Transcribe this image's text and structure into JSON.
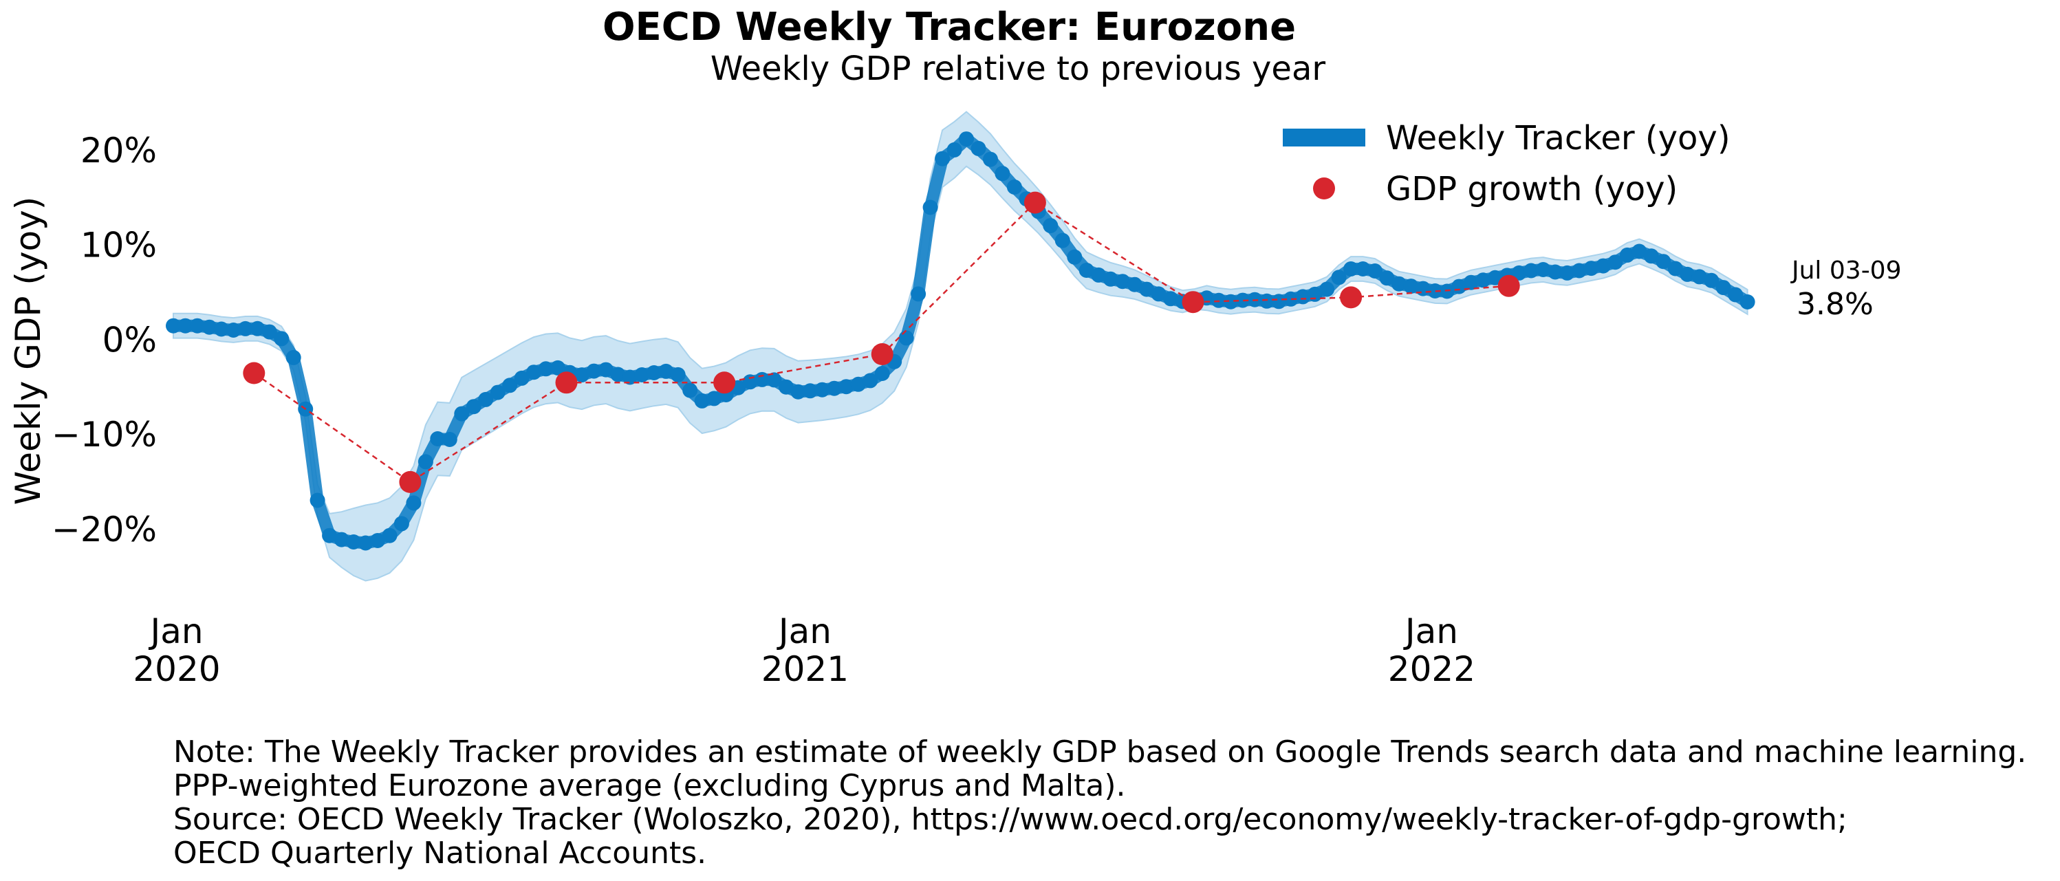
{
  "chart_data": {
    "type": "line",
    "title": "OECD Weekly Tracker: Eurozone",
    "subtitle": "Weekly GDP relative to previous year",
    "ylabel": "Weekly GDP (yoy)",
    "xlabel": "",
    "ylim": [
      -28,
      25
    ],
    "xlim": [
      "2019-12-30",
      "2022-07-21"
    ],
    "grid": false,
    "legend_position": "top-right",
    "y_ticks": [
      {
        "value": 20,
        "label": "20%"
      },
      {
        "value": 10,
        "label": "10%"
      },
      {
        "value": 0,
        "label": "0%"
      },
      {
        "value": -10,
        "label": "−10%"
      },
      {
        "value": -20,
        "label": "−20%"
      }
    ],
    "x_ticks": [
      {
        "date": "2020-01-01",
        "month": "Jan",
        "year": "2020"
      },
      {
        "date": "2021-01-01",
        "month": "Jan",
        "year": "2021"
      },
      {
        "date": "2022-01-01",
        "month": "Jan",
        "year": "2022"
      }
    ],
    "colors": {
      "tracker": "#0b7bc4",
      "band": "#a9d2ec",
      "gdp": "#d7262e"
    },
    "series": [
      {
        "name": "Weekly Tracker (yoy)",
        "style": "thick-line-with-dots",
        "points": [
          [
            "2019-12-30",
            1.5
          ],
          [
            "2020-01-15",
            1.5
          ],
          [
            "2020-02-01",
            1.0
          ],
          [
            "2020-02-15",
            1.3
          ],
          [
            "2020-02-29",
            0.6
          ],
          [
            "2020-03-07",
            -1.0
          ],
          [
            "2020-03-14",
            -4.0
          ],
          [
            "2020-03-21",
            -15.5
          ],
          [
            "2020-03-28",
            -20.5
          ],
          [
            "2020-04-04",
            -21.0
          ],
          [
            "2020-04-18",
            -21.5
          ],
          [
            "2020-05-02",
            -21.0
          ],
          [
            "2020-05-16",
            -18.5
          ],
          [
            "2020-05-23",
            -14.0
          ],
          [
            "2020-05-30",
            -10.0
          ],
          [
            "2020-06-06",
            -11.5
          ],
          [
            "2020-06-13",
            -8.0
          ],
          [
            "2020-06-27",
            -6.5
          ],
          [
            "2020-07-11",
            -5.0
          ],
          [
            "2020-07-25",
            -3.5
          ],
          [
            "2020-08-08",
            -2.8
          ],
          [
            "2020-08-22",
            -3.8
          ],
          [
            "2020-09-05",
            -3.0
          ],
          [
            "2020-09-19",
            -4.0
          ],
          [
            "2020-10-03",
            -3.5
          ],
          [
            "2020-10-17",
            -3.2
          ],
          [
            "2020-10-31",
            -6.5
          ],
          [
            "2020-11-14",
            -6.0
          ],
          [
            "2020-11-28",
            -4.5
          ],
          [
            "2020-12-12",
            -4.0
          ],
          [
            "2020-12-26",
            -5.5
          ],
          [
            "2021-01-09",
            -5.3
          ],
          [
            "2021-01-23",
            -5.0
          ],
          [
            "2021-02-06",
            -4.5
          ],
          [
            "2021-02-20",
            -3.0
          ],
          [
            "2021-03-06",
            2.0
          ],
          [
            "2021-03-13",
            12.0
          ],
          [
            "2021-03-20",
            19.0
          ],
          [
            "2021-03-27",
            19.5
          ],
          [
            "2021-04-03",
            21.5
          ],
          [
            "2021-04-17",
            19.5
          ],
          [
            "2021-05-01",
            16.5
          ],
          [
            "2021-05-15",
            14.0
          ],
          [
            "2021-05-29",
            11.0
          ],
          [
            "2021-06-12",
            7.5
          ],
          [
            "2021-06-26",
            6.5
          ],
          [
            "2021-07-10",
            6.0
          ],
          [
            "2021-07-24",
            5.0
          ],
          [
            "2021-08-07",
            4.0
          ],
          [
            "2021-08-21",
            4.5
          ],
          [
            "2021-09-04",
            4.0
          ],
          [
            "2021-09-18",
            4.3
          ],
          [
            "2021-10-02",
            4.0
          ],
          [
            "2021-10-16",
            4.5
          ],
          [
            "2021-10-30",
            5.0
          ],
          [
            "2021-11-13",
            7.5
          ],
          [
            "2021-11-27",
            7.5
          ],
          [
            "2021-12-11",
            6.0
          ],
          [
            "2021-12-25",
            5.5
          ],
          [
            "2022-01-08",
            5.0
          ],
          [
            "2022-01-22",
            6.0
          ],
          [
            "2022-02-05",
            6.5
          ],
          [
            "2022-02-19",
            7.0
          ],
          [
            "2022-03-05",
            7.5
          ],
          [
            "2022-03-19",
            7.0
          ],
          [
            "2022-04-02",
            7.5
          ],
          [
            "2022-04-16",
            8.0
          ],
          [
            "2022-04-30",
            9.5
          ],
          [
            "2022-05-14",
            8.5
          ],
          [
            "2022-05-28",
            7.0
          ],
          [
            "2022-06-11",
            6.5
          ],
          [
            "2022-06-25",
            5.0
          ],
          [
            "2022-07-06",
            3.8
          ]
        ],
        "band_halfwidth": [
          [
            "2020-03-21",
            1.5
          ],
          [
            "2020-04-18",
            4.0
          ],
          [
            "2021-03-27",
            3.0
          ],
          [
            "2021-08-21",
            1.0
          ]
        ]
      },
      {
        "name": "GDP growth (yoy)",
        "style": "markers-with-dashed-line",
        "points": [
          [
            "2020-02-15",
            -3.5
          ],
          [
            "2020-05-16",
            -15.0
          ],
          [
            "2020-08-15",
            -4.5
          ],
          [
            "2020-11-15",
            -4.5
          ],
          [
            "2021-02-15",
            -1.5
          ],
          [
            "2021-05-15",
            14.5
          ],
          [
            "2021-08-15",
            4.0
          ],
          [
            "2021-11-15",
            4.5
          ],
          [
            "2022-02-15",
            5.7
          ]
        ]
      }
    ],
    "annotations": [
      {
        "text": "Jul 03-09",
        "anchor_date": "2022-07-06"
      },
      {
        "text": "3.8%",
        "anchor_date": "2022-07-06"
      }
    ]
  },
  "notes": [
    "Note: The Weekly Tracker provides an estimate of weekly GDP based on Google Trends search data and machine learning.",
    "PPP-weighted Eurozone average (excluding Cyprus and Malta).",
    "Source: OECD Weekly Tracker (Woloszko, 2020), https://www.oecd.org/economy/weekly-tracker-of-gdp-growth;",
    "OECD Quarterly National Accounts."
  ]
}
